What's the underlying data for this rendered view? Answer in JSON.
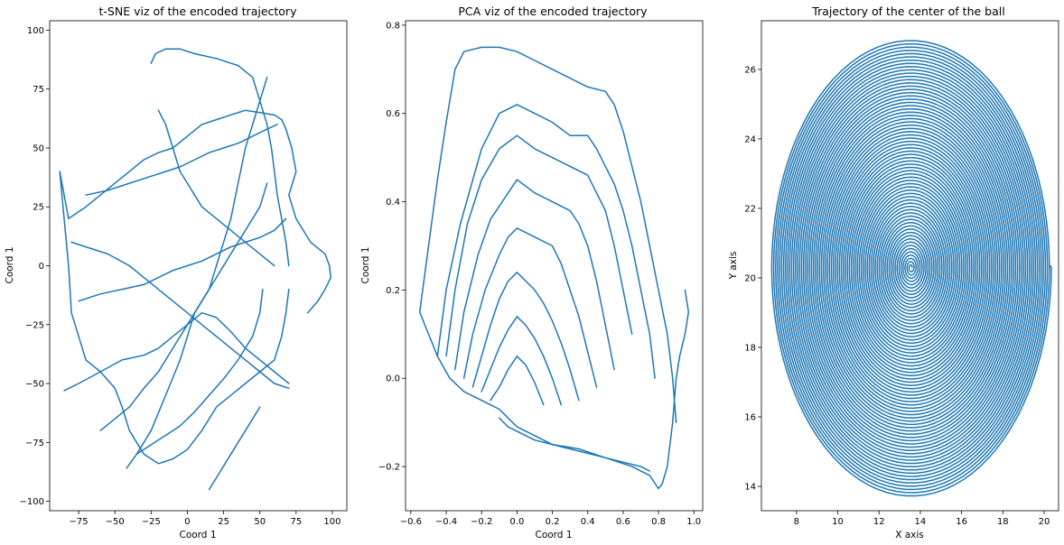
{
  "chart_data": [
    {
      "type": "line",
      "title": "t-SNE viz of the encoded trajectory",
      "xlabel": "Coord 1",
      "ylabel": "Coord 1",
      "xlim": [
        -95,
        110
      ],
      "ylim": [
        -104,
        104
      ],
      "xticks": [
        -75,
        -50,
        -25,
        0,
        25,
        50,
        75,
        100
      ],
      "yticks": [
        -100,
        -75,
        -50,
        -25,
        0,
        25,
        50,
        75,
        100
      ],
      "xticklabels": [
        "−75",
        "−50",
        "−25",
        "0",
        "25",
        "50",
        "75",
        "100"
      ],
      "yticklabels": [
        "−100",
        "−75",
        "−50",
        "−25",
        "0",
        "25",
        "50",
        "75",
        "100"
      ],
      "grid": false,
      "color": "#1f77b4",
      "series": [
        {
          "x": [
            83,
            90,
            95,
            99,
            98,
            95,
            85,
            75,
            70,
            75,
            72,
            68,
            65,
            60,
            50,
            40,
            30,
            20,
            10,
            0,
            -10,
            -20,
            -30,
            -40,
            -50,
            -60,
            -70,
            -82,
            -88
          ],
          "y": [
            -20,
            -15,
            -10,
            -5,
            0,
            5,
            10,
            20,
            30,
            40,
            50,
            58,
            62,
            64,
            65,
            66,
            64,
            62,
            60,
            55,
            50,
            48,
            45,
            40,
            35,
            30,
            25,
            20,
            40
          ]
        },
        {
          "x": [
            -88,
            -85,
            -82,
            -80,
            -75,
            -70,
            -60,
            -50,
            -45,
            -40,
            -30,
            -20,
            -10,
            0,
            10,
            20,
            30,
            40,
            50,
            60,
            65,
            68,
            70
          ],
          "y": [
            40,
            20,
            0,
            -20,
            -30,
            -40,
            -45,
            -52,
            -60,
            -70,
            -80,
            -84,
            -82,
            -78,
            -70,
            -60,
            -55,
            -50,
            -45,
            -40,
            -30,
            -20,
            -10
          ]
        },
        {
          "x": [
            -25,
            -22,
            -15,
            -5,
            5,
            20,
            35,
            45,
            50,
            55,
            58,
            60,
            62,
            65,
            68,
            70
          ],
          "y": [
            86,
            90,
            92,
            92,
            90,
            88,
            85,
            80,
            70,
            60,
            50,
            40,
            30,
            20,
            10,
            0
          ]
        },
        {
          "x": [
            -42,
            -35,
            -25,
            -15,
            -5,
            0,
            5,
            15,
            20,
            25,
            30,
            35,
            40,
            45,
            50,
            55
          ],
          "y": [
            -86,
            -80,
            -70,
            -55,
            -40,
            -30,
            -20,
            -10,
            0,
            10,
            20,
            35,
            50,
            60,
            70,
            80
          ]
        },
        {
          "x": [
            -85,
            -75,
            -60,
            -45,
            -30,
            -20,
            -10,
            0,
            10,
            20,
            30,
            40,
            50,
            60,
            70
          ],
          "y": [
            -53,
            -50,
            -45,
            -40,
            -38,
            -35,
            -30,
            -25,
            -20,
            -22,
            -28,
            -35,
            -40,
            -45,
            -50
          ]
        },
        {
          "x": [
            -80,
            -70,
            -55,
            -40,
            -30,
            -20,
            -10,
            0,
            10,
            20,
            30,
            40,
            50,
            60,
            70
          ],
          "y": [
            10,
            8,
            5,
            0,
            -5,
            -10,
            -15,
            -20,
            -25,
            -30,
            -35,
            -40,
            -45,
            -50,
            -52
          ]
        },
        {
          "x": [
            -75,
            -60,
            -45,
            -30,
            -20,
            -10,
            0,
            10,
            20,
            30,
            40,
            50,
            60,
            68
          ],
          "y": [
            -15,
            -12,
            -10,
            -8,
            -5,
            -2,
            0,
            2,
            5,
            8,
            10,
            12,
            15,
            20
          ]
        },
        {
          "x": [
            -70,
            -55,
            -40,
            -25,
            -15,
            -5,
            5,
            15,
            25,
            35,
            45,
            55,
            62
          ],
          "y": [
            30,
            32,
            35,
            38,
            40,
            42,
            45,
            48,
            50,
            52,
            55,
            58,
            60
          ]
        },
        {
          "x": [
            -20,
            -15,
            -10,
            -5,
            0,
            5,
            10,
            20,
            30,
            40,
            50,
            60
          ],
          "y": [
            66,
            60,
            50,
            40,
            35,
            30,
            25,
            20,
            15,
            10,
            5,
            0
          ]
        },
        {
          "x": [
            -60,
            -50,
            -40,
            -30,
            -20,
            -10,
            0,
            10,
            20,
            30,
            40,
            50,
            55
          ],
          "y": [
            -70,
            -65,
            -60,
            -52,
            -45,
            -35,
            -25,
            -15,
            -5,
            5,
            15,
            25,
            35
          ]
        },
        {
          "x": [
            -35,
            -25,
            -15,
            -5,
            5,
            15,
            25,
            35,
            45,
            50,
            52
          ],
          "y": [
            -80,
            -76,
            -72,
            -68,
            -62,
            -55,
            -48,
            -40,
            -30,
            -20,
            -10
          ]
        },
        {
          "x": [
            15,
            20,
            25,
            30,
            35,
            40,
            45,
            50
          ],
          "y": [
            -95,
            -90,
            -85,
            -80,
            -75,
            -70,
            -65,
            -60
          ]
        }
      ]
    },
    {
      "type": "line",
      "title": "PCA viz of the encoded trajectory",
      "xlabel": "Coord 1",
      "ylabel": "Coord 1",
      "xlim": [
        -0.63,
        1.05
      ],
      "ylim": [
        -0.3,
        0.81
      ],
      "xticks": [
        -0.6,
        -0.4,
        -0.2,
        0.0,
        0.2,
        0.4,
        0.6,
        0.8,
        1.0
      ],
      "yticks": [
        -0.2,
        0.0,
        0.2,
        0.4,
        0.6,
        0.8
      ],
      "xticklabels": [
        "−0.6",
        "−0.4",
        "−0.2",
        "0.0",
        "0.2",
        "0.4",
        "0.6",
        "0.8",
        "1.0"
      ],
      "yticklabels": [
        "−0.2",
        "0.0",
        "0.2",
        "0.4",
        "0.6",
        "0.8"
      ],
      "grid": false,
      "color": "#1f77b4",
      "series": [
        {
          "x": [
            -0.55,
            -0.52,
            -0.5,
            -0.45,
            -0.38,
            -0.3,
            -0.2,
            -0.1,
            -0.05,
            0.0,
            0.1,
            0.2,
            0.35,
            0.5,
            0.65,
            0.75,
            0.8,
            0.82,
            0.85,
            0.88,
            0.9,
            0.92,
            0.95,
            0.97,
            0.95
          ],
          "y": [
            0.15,
            0.12,
            0.1,
            0.05,
            0.0,
            -0.03,
            -0.05,
            -0.07,
            -0.09,
            -0.11,
            -0.13,
            -0.15,
            -0.16,
            -0.18,
            -0.2,
            -0.22,
            -0.25,
            -0.24,
            -0.2,
            -0.1,
            0.0,
            0.05,
            0.1,
            0.15,
            0.2
          ]
        },
        {
          "x": [
            -0.55,
            -0.5,
            -0.45,
            -0.4,
            -0.35,
            -0.3,
            -0.2,
            -0.1,
            0.0,
            0.1,
            0.2,
            0.3,
            0.4,
            0.5,
            0.55,
            0.6,
            0.65,
            0.7,
            0.75,
            0.8,
            0.85,
            0.88,
            0.9
          ],
          "y": [
            0.15,
            0.3,
            0.45,
            0.58,
            0.7,
            0.74,
            0.75,
            0.75,
            0.74,
            0.72,
            0.7,
            0.68,
            0.66,
            0.65,
            0.62,
            0.56,
            0.48,
            0.4,
            0.3,
            0.2,
            0.1,
            0.0,
            -0.1
          ]
        },
        {
          "x": [
            -0.45,
            -0.4,
            -0.32,
            -0.2,
            -0.1,
            0.0,
            0.1,
            0.2,
            0.3,
            0.4,
            0.45,
            0.5,
            0.55,
            0.6,
            0.65,
            0.7,
            0.75,
            0.78
          ],
          "y": [
            0.05,
            0.2,
            0.35,
            0.52,
            0.6,
            0.62,
            0.6,
            0.58,
            0.55,
            0.55,
            0.52,
            0.48,
            0.44,
            0.38,
            0.3,
            0.2,
            0.1,
            0.0
          ]
        },
        {
          "x": [
            -0.4,
            -0.35,
            -0.28,
            -0.2,
            -0.1,
            0.0,
            0.1,
            0.2,
            0.3,
            0.4,
            0.45,
            0.5,
            0.55,
            0.6,
            0.65
          ],
          "y": [
            0.05,
            0.2,
            0.35,
            0.45,
            0.52,
            0.55,
            0.52,
            0.5,
            0.48,
            0.46,
            0.42,
            0.38,
            0.3,
            0.2,
            0.1
          ]
        },
        {
          "x": [
            -0.35,
            -0.3,
            -0.22,
            -0.15,
            -0.05,
            0.0,
            0.1,
            0.2,
            0.3,
            0.35,
            0.4,
            0.45,
            0.5,
            0.55
          ],
          "y": [
            0.02,
            0.15,
            0.28,
            0.36,
            0.42,
            0.45,
            0.42,
            0.4,
            0.38,
            0.35,
            0.3,
            0.22,
            0.12,
            0.02
          ]
        },
        {
          "x": [
            -0.3,
            -0.25,
            -0.18,
            -0.1,
            -0.05,
            0.0,
            0.1,
            0.2,
            0.25,
            0.3,
            0.35,
            0.4,
            0.45
          ],
          "y": [
            0.0,
            0.1,
            0.2,
            0.28,
            0.32,
            0.34,
            0.32,
            0.3,
            0.26,
            0.2,
            0.14,
            0.06,
            -0.02
          ]
        },
        {
          "x": [
            -0.25,
            -0.2,
            -0.15,
            -0.1,
            -0.05,
            0.0,
            0.05,
            0.1,
            0.15,
            0.2,
            0.25,
            0.3,
            0.35
          ],
          "y": [
            -0.02,
            0.05,
            0.12,
            0.18,
            0.22,
            0.24,
            0.22,
            0.2,
            0.17,
            0.13,
            0.08,
            0.02,
            -0.05
          ]
        },
        {
          "x": [
            -0.2,
            -0.15,
            -0.1,
            -0.05,
            0.0,
            0.05,
            0.1,
            0.15,
            0.2,
            0.25
          ],
          "y": [
            -0.03,
            0.02,
            0.07,
            0.11,
            0.14,
            0.12,
            0.09,
            0.05,
            0.0,
            -0.06
          ]
        },
        {
          "x": [
            -0.15,
            -0.1,
            -0.05,
            0.0,
            0.05,
            0.1,
            0.15
          ],
          "y": [
            -0.05,
            -0.02,
            0.02,
            0.05,
            0.03,
            -0.01,
            -0.06
          ]
        },
        {
          "x": [
            -0.1,
            -0.05,
            0.0,
            0.05,
            0.1,
            0.2,
            0.3,
            0.4,
            0.5,
            0.6,
            0.7,
            0.75
          ],
          "y": [
            -0.09,
            -0.11,
            -0.12,
            -0.13,
            -0.14,
            -0.15,
            -0.16,
            -0.17,
            -0.18,
            -0.19,
            -0.2,
            -0.21
          ]
        }
      ]
    },
    {
      "type": "line",
      "title": "Trajectory of the center of the ball",
      "xlabel": "X axis",
      "ylabel": "Y axis",
      "xlim": [
        6.3,
        20.7
      ],
      "ylim": [
        13.3,
        27.4
      ],
      "xticks": [
        8,
        10,
        12,
        14,
        16,
        18,
        20
      ],
      "yticks": [
        14,
        16,
        18,
        20,
        22,
        24,
        26
      ],
      "xticklabels": [
        "8",
        "10",
        "12",
        "14",
        "16",
        "18",
        "20"
      ],
      "yticklabels": [
        "14",
        "16",
        "18",
        "20",
        "22",
        "24",
        "26"
      ],
      "grid": false,
      "color": "#1f77b4",
      "spiral": {
        "center_x": 13.55,
        "center_y": 20.3,
        "outer_rx": 6.8,
        "outer_ry": 6.6,
        "inner_r": 0.05,
        "turns": 70,
        "end_x": 20.3,
        "end_y": 20.35
      }
    }
  ]
}
